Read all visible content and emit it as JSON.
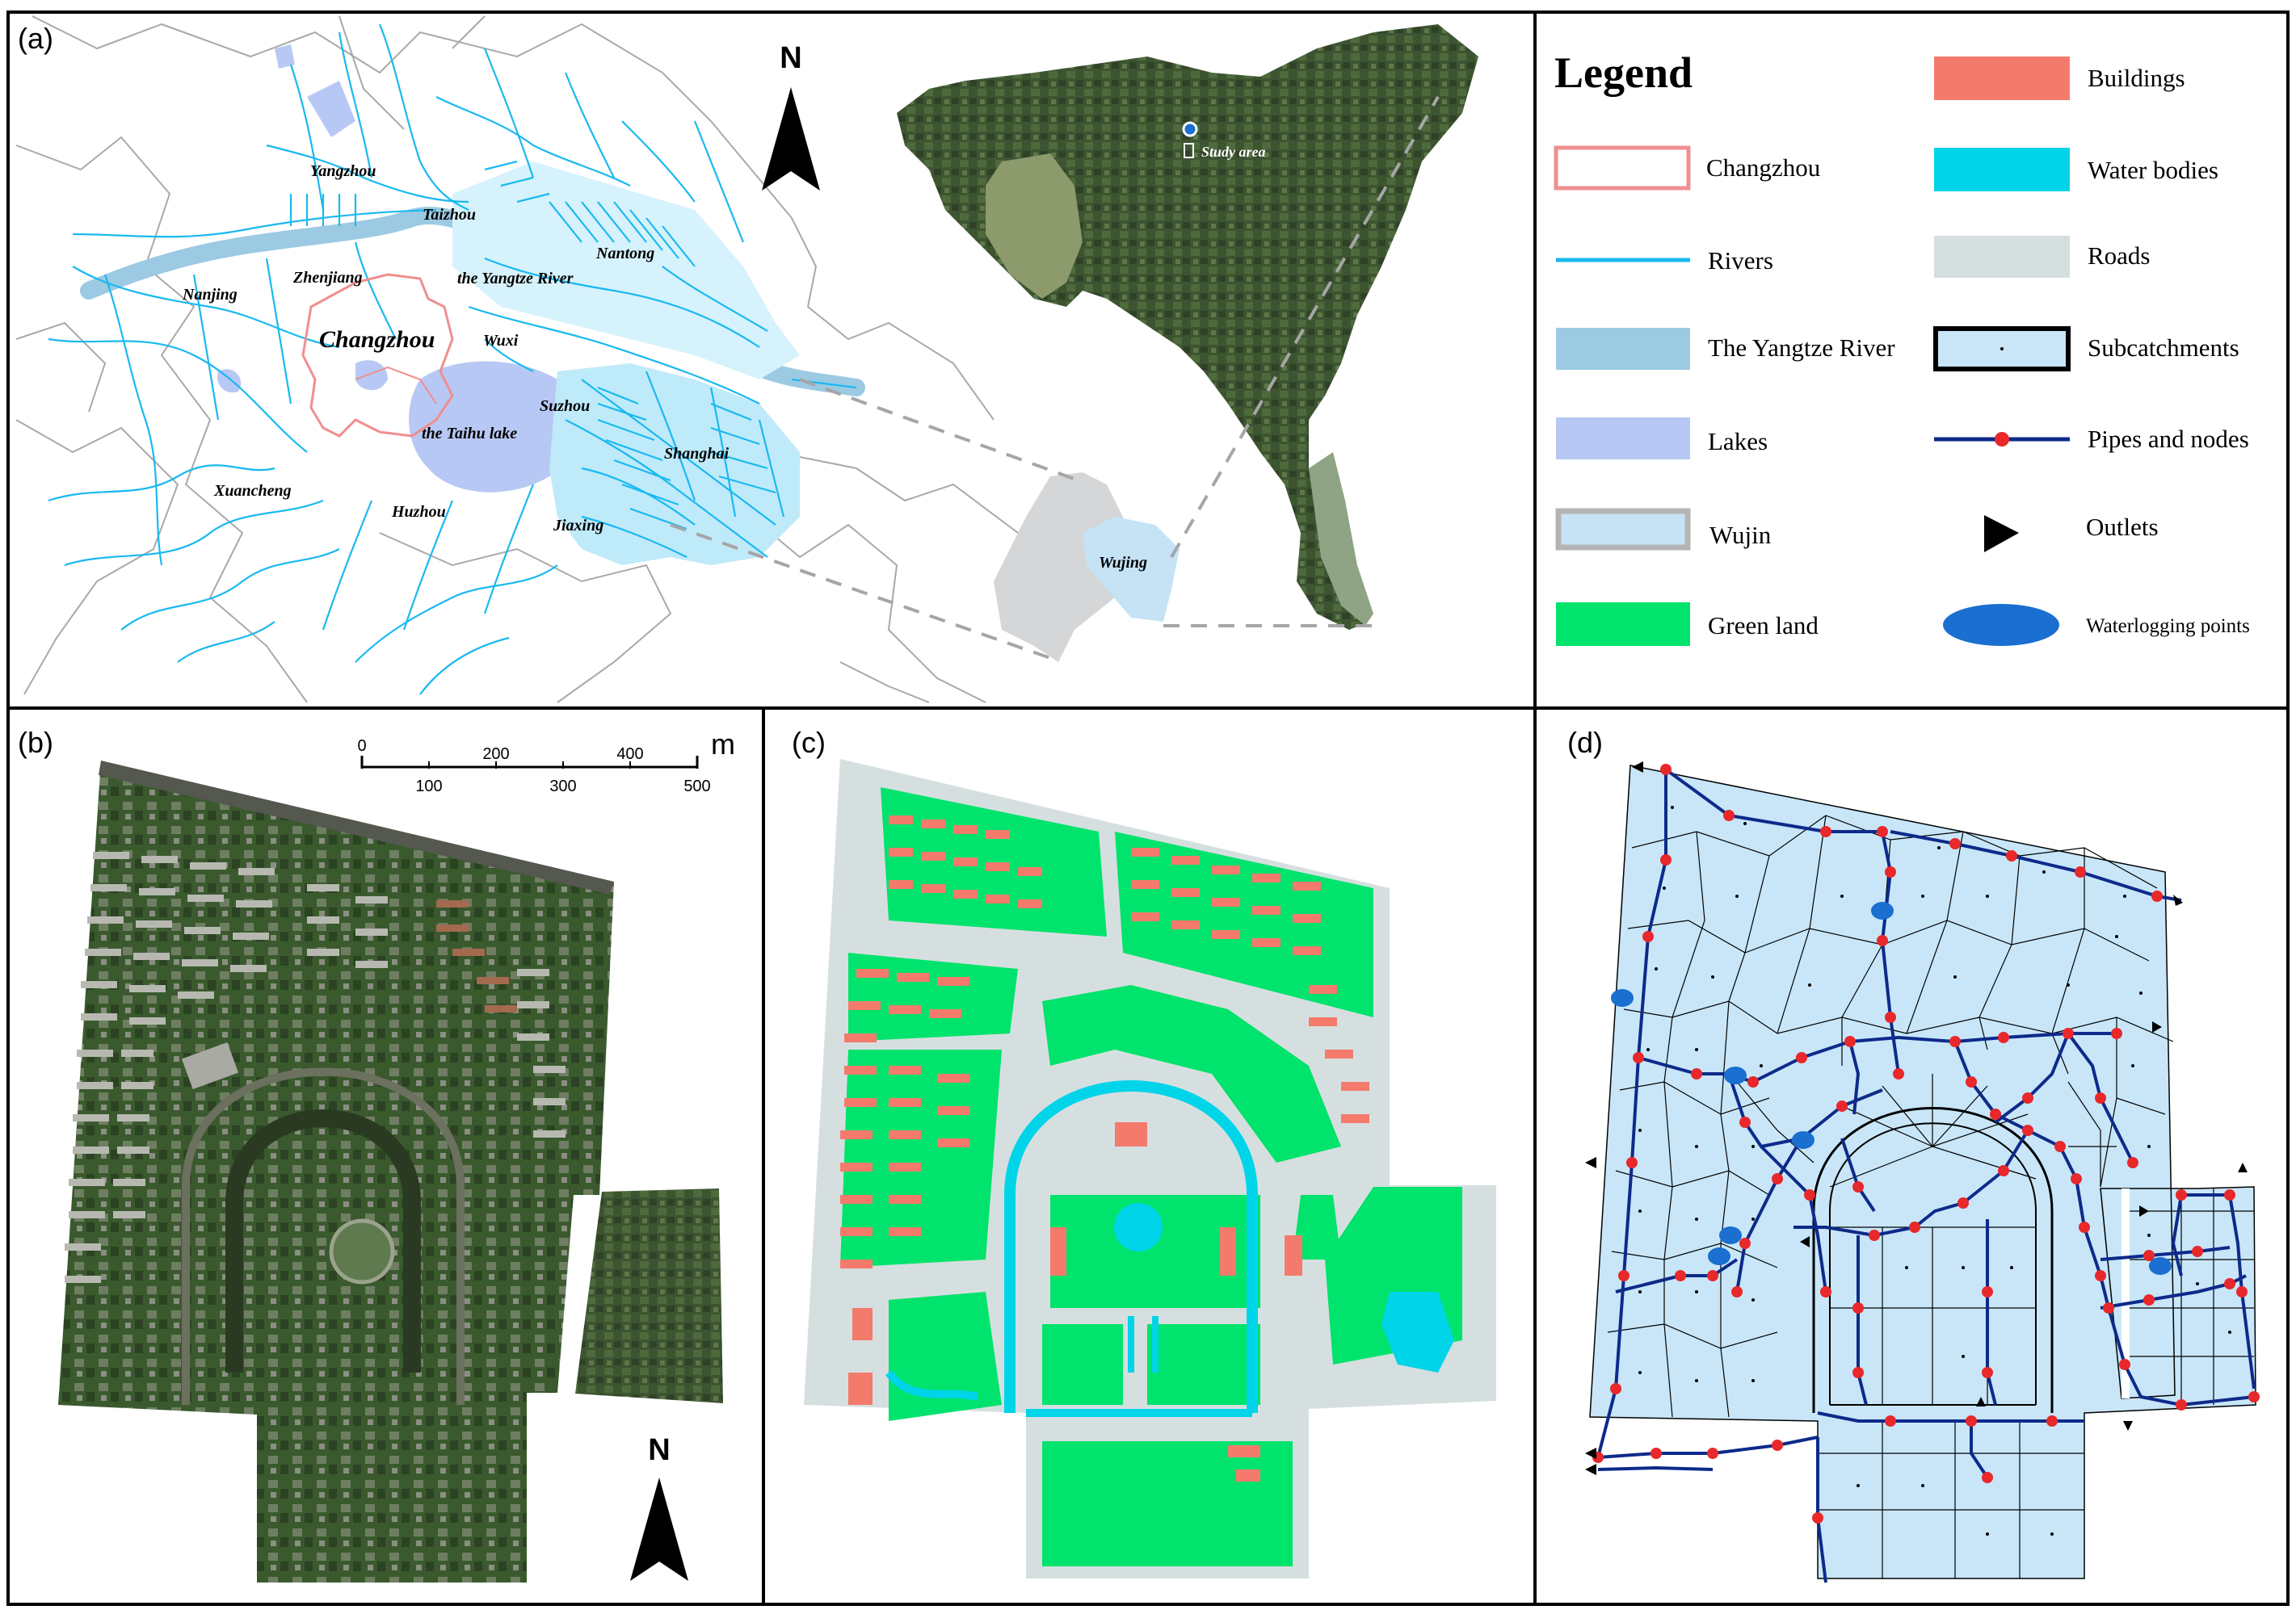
{
  "panels": {
    "a": {
      "letter": "(a)",
      "north": "N",
      "place_names": {
        "yangzhou": "Yangzhou",
        "taizhou": "Taizhou",
        "nantong": "Nantong",
        "zhenjiang": "Zhenjiang",
        "yangtze": "the Yangtze River",
        "nanjing": "Nanjing",
        "changzhou": "Changzhou",
        "wuxi": "Wuxi",
        "suzhou": "Suzhou",
        "taihu": "the Taihu lake",
        "shanghai": "Shanghai",
        "xuancheng": "Xuancheng",
        "huzhou": "Huzhou",
        "jiaxing": "Jiaxing",
        "wujing": "Wujing",
        "study_area": "Study area"
      }
    },
    "b": {
      "letter": "(b)",
      "north": "N",
      "scale": {
        "unit": "m",
        "top_ticks": [
          "0",
          "200",
          "400"
        ],
        "bottom_ticks": [
          "100",
          "300",
          "500"
        ]
      }
    },
    "c": {
      "letter": "(c)"
    },
    "d": {
      "letter": "(d)"
    }
  },
  "legend": {
    "title": "Legend",
    "left": [
      {
        "key": "changzhou",
        "label": "Changzhou"
      },
      {
        "key": "rivers",
        "label": "Rivers"
      },
      {
        "key": "yangtze",
        "label": "The Yangtze River"
      },
      {
        "key": "lakes",
        "label": "Lakes"
      },
      {
        "key": "wujin",
        "label": "Wujin"
      },
      {
        "key": "green",
        "label": "Green land"
      }
    ],
    "right": [
      {
        "key": "buildings",
        "label": "Buildings"
      },
      {
        "key": "water",
        "label": "Water bodies"
      },
      {
        "key": "roads",
        "label": "Roads"
      },
      {
        "key": "subcatchments",
        "label": "Subcatchments"
      },
      {
        "key": "pipes",
        "label": "Pipes and nodes"
      },
      {
        "key": "outlets",
        "label": "Outlets"
      },
      {
        "key": "waterlogging",
        "label": "Waterlogging points"
      }
    ]
  },
  "colors": {
    "changzhou_outline": "#f08f8f",
    "rivers": "#19b9f0",
    "yangtze": "#9ccae3",
    "lakes": "#b8c8f4",
    "wujin_fill": "#c5e3f5",
    "wujin_border": "#b4b4b4",
    "green_land": "#00e36c",
    "buildings": "#f47a6c",
    "water_bodies": "#00d4e8",
    "roads": "#d6dfe0",
    "subcatchment_fill": "#c8e6f8",
    "pipes": "#0d2a8a",
    "nodes": "#e8282a",
    "waterlogging": "#1a6fd0",
    "satellite_dark": "#354a2c",
    "satellite_light": "#4d6b3c"
  },
  "icons": [
    "north-arrow-icon",
    "outlet-arrow-icon",
    "location-pin-icon"
  ]
}
